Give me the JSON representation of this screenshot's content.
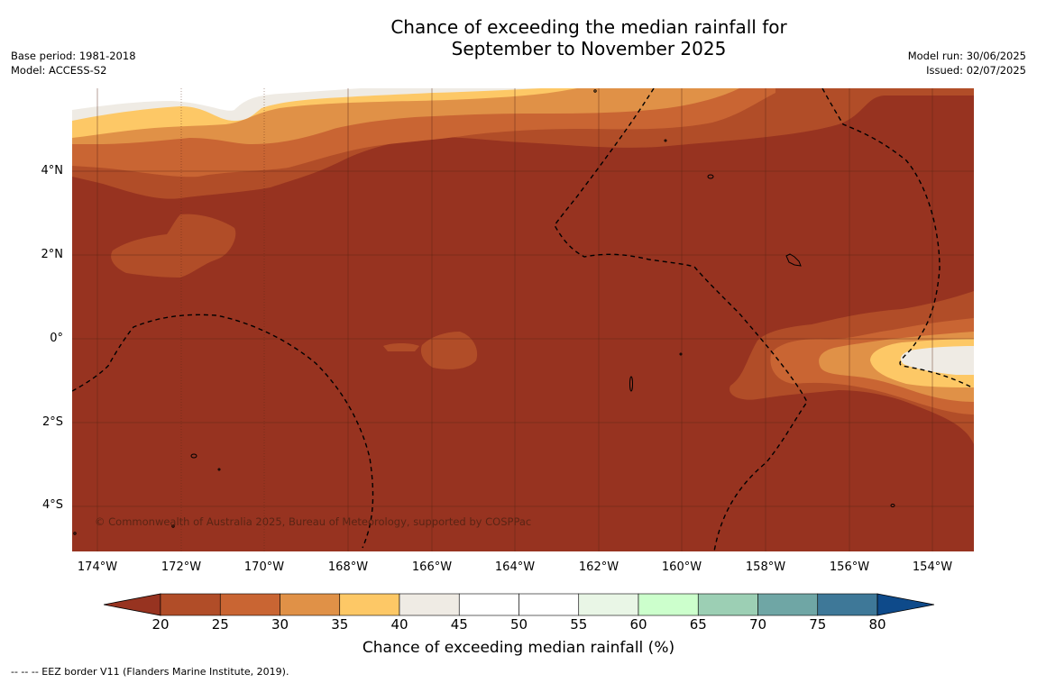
{
  "title_line1": "Chance of exceeding the median rainfall for",
  "title_line2": "September to November 2025",
  "base_period": "Base period: 1981-2018",
  "model": "Model: ACCESS-S2",
  "model_run": "Model run: 30/06/2025",
  "issued": "Issued: 02/07/2025",
  "copyright": "© Commonwealth of Australia 2025, Bureau of Meteorology, supported by COSPPac",
  "lat_labels": [
    "4°N",
    "2°N",
    "0°",
    "2°S",
    "4°S"
  ],
  "lon_labels": [
    "174°W",
    "172°W",
    "170°W",
    "168°W",
    "166°W",
    "164°W",
    "162°W",
    "160°W",
    "158°W",
    "156°W",
    "154°W"
  ],
  "colorbar": {
    "label": "Chance of exceeding median rainfall (%)",
    "ticks": [
      "20",
      "25",
      "30",
      "35",
      "40",
      "45",
      "50",
      "55",
      "60",
      "65",
      "70",
      "75",
      "80"
    ],
    "under_color": "#973320",
    "over_color": "#0e4a8a",
    "colors": [
      "#b14d28",
      "#c96533",
      "#e09147",
      "#fdc866",
      "#efebe4",
      "#ffffff",
      "#ffffff",
      "#e9f6e6",
      "#ccffcc",
      "#9ccfb4",
      "#6fa6a5",
      "#3e7898"
    ]
  },
  "footnote": "--  --  -- EEZ border V11 (Flanders Marine Institute, 2019)."
}
